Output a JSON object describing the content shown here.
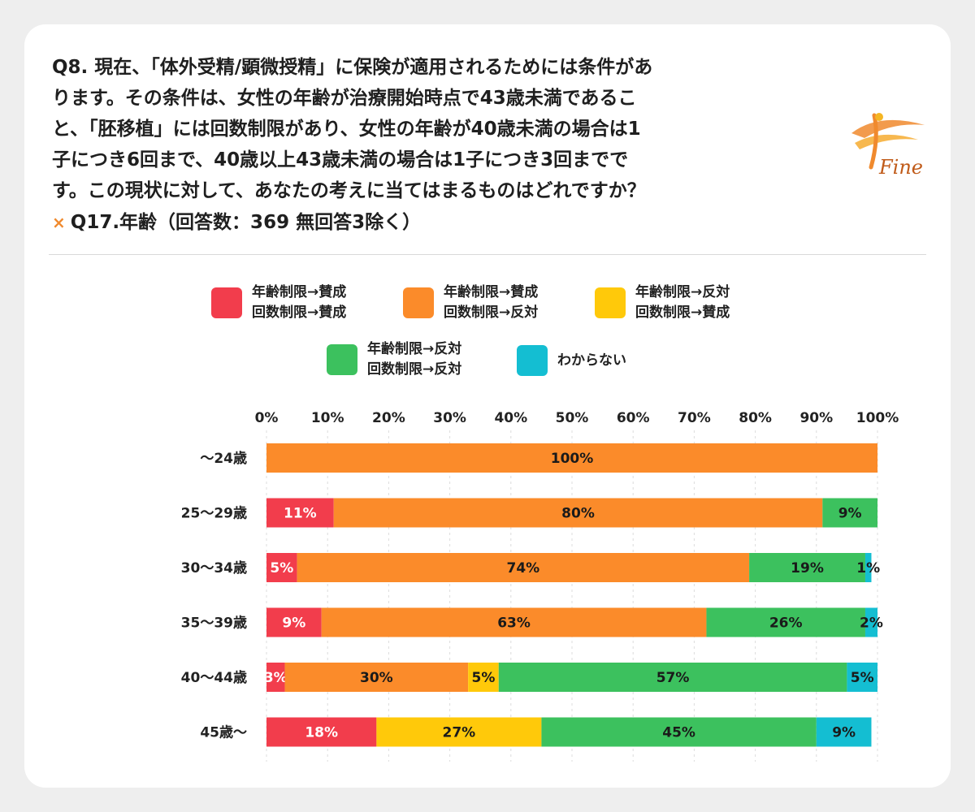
{
  "header": {
    "question_lines": [
      "Q8. 現在、「体外受精/顕微授精」に保険が適用されるためには条件があ",
      "ります。その条件は、女性の年齢が治療開始時点で43歳未満であるこ",
      "と、「胚移植」には回数制限があり、女性の年齢が40歳未満の場合は1",
      "子につき6回まで、40歳以上43歳未満の場合は1子につき3回までで",
      "す。この現状に対して、あなたの考えに当てはまるものはどれですか？"
    ],
    "cross_mark": "×",
    "crosstab": "Q17.年齢（回答数：369 無回答3除く）"
  },
  "logo": {
    "text": "Fine",
    "icon": "fine-logo-icon",
    "accent": "#f08a2e"
  },
  "legend": [
    {
      "line1": "年齢制限→賛成",
      "line2": "回数制限→賛成",
      "color": "#f23d4c"
    },
    {
      "line1": "年齢制限→賛成",
      "line2": "回数制限→反対",
      "color": "#fb8b2a"
    },
    {
      "line1": "年齢制限→反対",
      "line2": "回数制限→賛成",
      "color": "#ffc90a"
    },
    {
      "line1": "年齢制限→反対",
      "line2": "回数制限→反対",
      "color": "#3cc15e"
    },
    {
      "line1": "わからない",
      "line2": "",
      "color": "#14bed2"
    }
  ],
  "chart_data": {
    "type": "bar",
    "orientation": "horizontal",
    "stacked": true,
    "xlim": [
      0,
      100
    ],
    "x_ticks": [
      "0%",
      "10%",
      "20%",
      "30%",
      "40%",
      "50%",
      "60%",
      "70%",
      "80%",
      "90%",
      "100%"
    ],
    "grid": true,
    "legend_position": "top",
    "categories": [
      "〜24歳",
      "25〜29歳",
      "30〜34歳",
      "35〜39歳",
      "40〜44歳",
      "45歳〜"
    ],
    "series": [
      {
        "name": "年齢制限→賛成 回数制限→賛成",
        "color": "#f23d4c",
        "values": [
          0,
          11,
          5,
          9,
          3,
          18
        ]
      },
      {
        "name": "年齢制限→賛成 回数制限→反対",
        "color": "#fb8b2a",
        "values": [
          100,
          80,
          74,
          63,
          30,
          0
        ]
      },
      {
        "name": "年齢制限→反対 回数制限→賛成",
        "color": "#ffc90a",
        "values": [
          0,
          0,
          0,
          0,
          5,
          27
        ]
      },
      {
        "name": "年齢制限→反対 回数制限→反対",
        "color": "#3cc15e",
        "values": [
          0,
          9,
          19,
          26,
          57,
          45
        ]
      },
      {
        "name": "わからない",
        "color": "#14bed2",
        "values": [
          0,
          0,
          1,
          2,
          5,
          9
        ]
      }
    ]
  }
}
